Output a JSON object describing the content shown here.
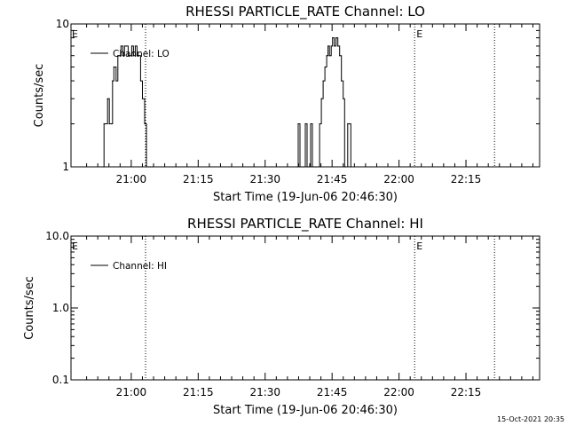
{
  "chart_data": [
    {
      "type": "line",
      "title": "RHESSI PARTICLE_RATE Channel: LO",
      "xlabel": "Start Time (19-Jun-06 20:46:30)",
      "ylabel": "Counts/sec",
      "x_unit": "minutes after 20:46:30",
      "xlim": [
        0,
        105
      ],
      "ylim": [
        1,
        10
      ],
      "yscale": "log",
      "yticks": [
        1,
        10
      ],
      "ytick_labels": [
        "1",
        "10"
      ],
      "xticks": [
        13.5,
        28.5,
        43.5,
        58.5,
        73.5,
        88.5
      ],
      "xtick_labels": [
        "21:00",
        "21:15",
        "21:30",
        "21:45",
        "22:00",
        "22:15"
      ],
      "vlines": [
        {
          "x": 16.7,
          "label": ""
        },
        {
          "x": 77.0,
          "label": "E"
        },
        {
          "x": 94.9,
          "label": ""
        }
      ],
      "edge_label": "E",
      "legend": {
        "entry": "Channel: LO",
        "placement": "top-left"
      },
      "series": [
        {
          "name": "Channel: LO",
          "x": [
            7.2,
            7.4,
            7.7,
            8.2,
            8.6,
            9.0,
            9.3,
            9.6,
            10.1,
            10.5,
            10.9,
            11.2,
            11.6,
            12.0,
            12.4,
            12.8,
            13.2,
            13.6,
            14.0,
            14.4,
            14.8,
            15.2,
            15.6,
            16.0,
            16.5,
            16.9,
            17.4,
            17.8,
            18.2,
            50.6,
            50.9,
            51.3,
            51.7,
            52.1,
            52.5,
            52.9,
            53.3,
            53.7,
            54.1,
            54.4,
            54.7,
            55.0,
            55.4,
            55.7,
            56.1,
            56.5,
            56.9,
            57.3,
            57.6,
            57.9,
            58.3,
            58.6,
            59.0,
            59.4,
            59.8,
            60.2,
            60.6,
            61.0,
            61.3,
            61.6,
            62.0,
            62.3,
            62.7
          ],
          "values": [
            1,
            2,
            2,
            3,
            2,
            2,
            4,
            5,
            4,
            6,
            6,
            7,
            6,
            7,
            7,
            6,
            6,
            7,
            6,
            7,
            6,
            6,
            4,
            3,
            2,
            1,
            1,
            1,
            1,
            1,
            2,
            1,
            1,
            1,
            2,
            1,
            1,
            2,
            1,
            1,
            1,
            1,
            1,
            2,
            3,
            4,
            5,
            6,
            7,
            6,
            7,
            8,
            7,
            8,
            7,
            6,
            4,
            3,
            1,
            1,
            2,
            2,
            1
          ]
        }
      ]
    },
    {
      "type": "line",
      "title": "RHESSI PARTICLE_RATE Channel: HI",
      "xlabel": "Start Time (19-Jun-06 20:46:30)",
      "ylabel": "Counts/sec",
      "x_unit": "minutes after 20:46:30",
      "xlim": [
        0,
        105
      ],
      "ylim": [
        0.1,
        10.0
      ],
      "yscale": "log",
      "yticks": [
        0.1,
        1.0,
        10.0
      ],
      "ytick_labels": [
        "0.1",
        "1.0",
        "10.0"
      ],
      "xticks": [
        13.5,
        28.5,
        43.5,
        58.5,
        73.5,
        88.5
      ],
      "xtick_labels": [
        "21:00",
        "21:15",
        "21:30",
        "21:45",
        "22:00",
        "22:15"
      ],
      "vlines": [
        {
          "x": 16.7,
          "label": ""
        },
        {
          "x": 77.0,
          "label": "E"
        },
        {
          "x": 94.9,
          "label": ""
        }
      ],
      "edge_label": "E",
      "legend": {
        "entry": "Channel: HI",
        "placement": "top-left"
      },
      "series": [
        {
          "name": "Channel: HI",
          "x": [],
          "values": []
        }
      ]
    }
  ],
  "footer": {
    "timestamp": "15-Oct-2021 20:35"
  }
}
